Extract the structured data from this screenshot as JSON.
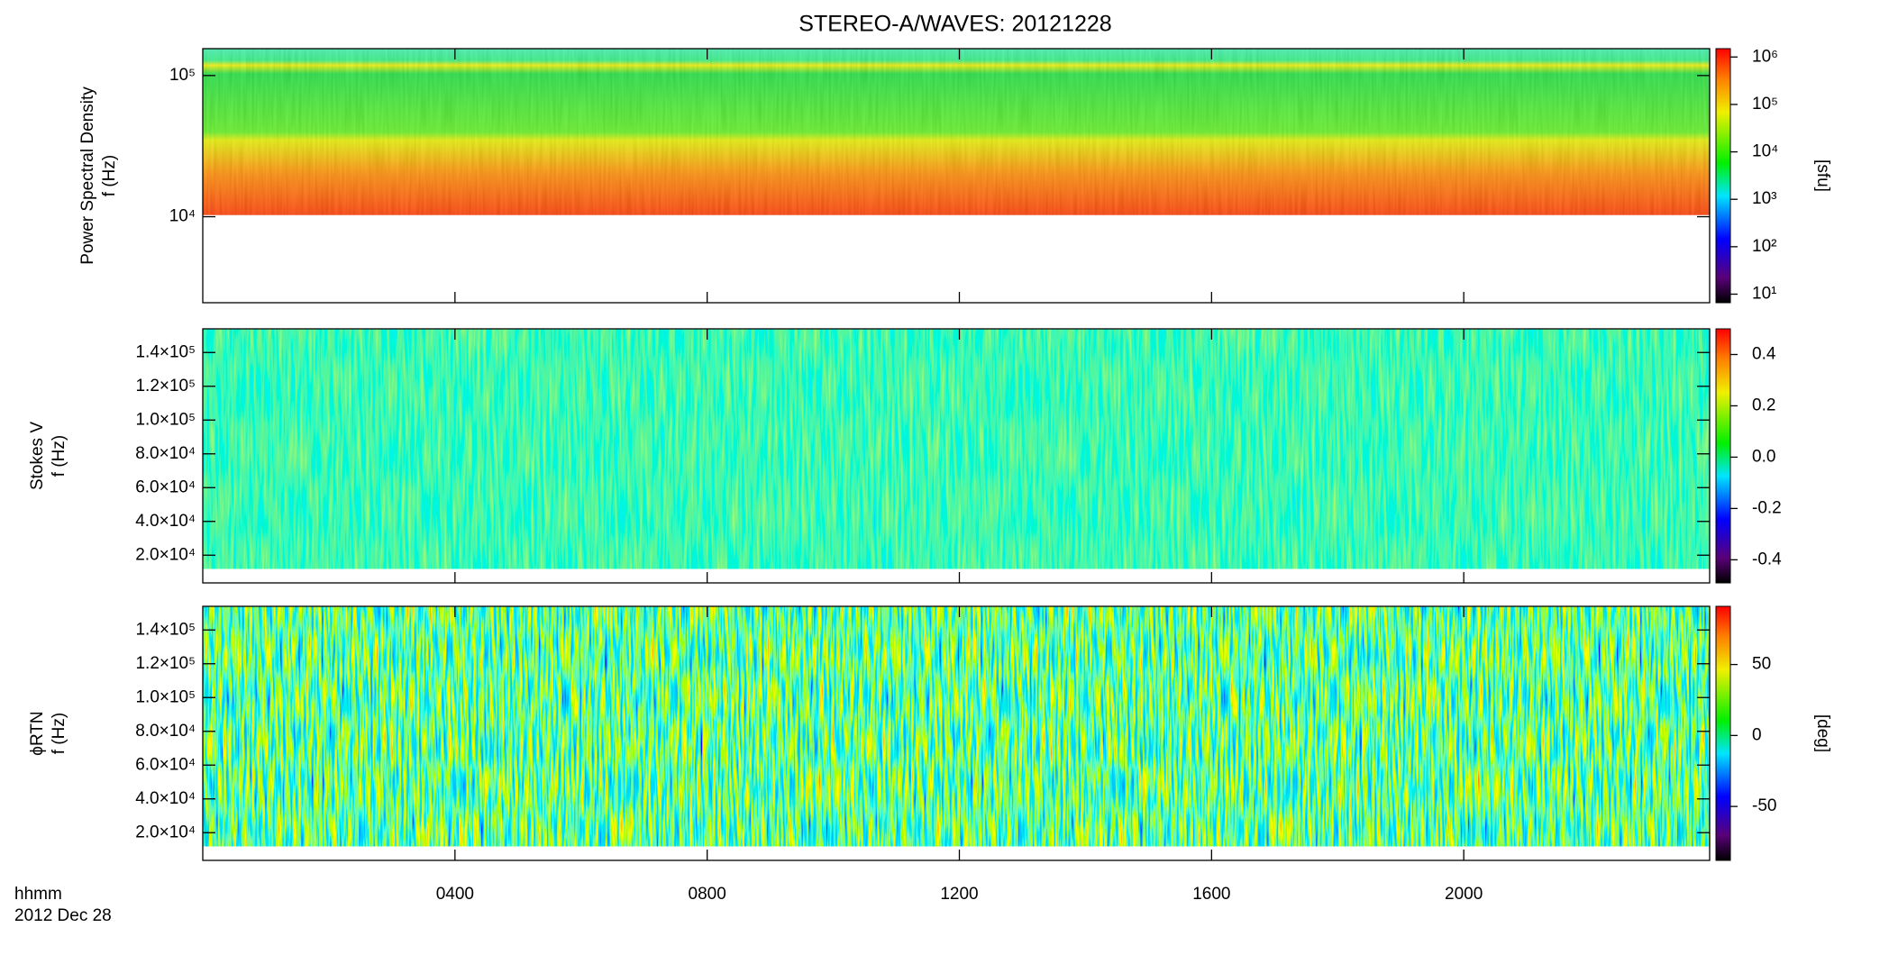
{
  "chart_data": [
    {
      "type": "heatmap",
      "title": "STEREO-A/WAVES: 20121228",
      "ylabel": [
        "Power Spectral Density",
        "f (Hz)"
      ],
      "ylog": true,
      "ylim": [
        2460,
        155000
      ],
      "yticks": [
        {
          "value": 10000,
          "label": "10⁴"
        },
        {
          "value": 100000,
          "label": "10⁵"
        }
      ],
      "colorbar": {
        "label": "[sfu]",
        "log": true,
        "lim": [
          6.6,
          1500000
        ],
        "ticks": [
          {
            "value": 10,
            "label": "10¹"
          },
          {
            "value": 100,
            "label": "10²"
          },
          {
            "value": 1000,
            "label": "10³"
          },
          {
            "value": 10000,
            "label": "10⁴"
          },
          {
            "value": 100000,
            "label": "10⁵"
          },
          {
            "value": 1000000,
            "label": "10⁶"
          }
        ]
      }
    },
    {
      "type": "heatmap",
      "ylabel": [
        "Stokes V",
        "f (Hz)"
      ],
      "ylog": false,
      "ylim": [
        3600,
        154000
      ],
      "yticks": [
        {
          "value": 20000,
          "label": "2.0×10⁴"
        },
        {
          "value": 40000,
          "label": "4.0×10⁴"
        },
        {
          "value": 60000,
          "label": "6.0×10⁴"
        },
        {
          "value": 80000,
          "label": "8.0×10⁴"
        },
        {
          "value": 100000,
          "label": "1.0×10⁵"
        },
        {
          "value": 120000,
          "label": "1.2×10⁵"
        },
        {
          "value": 140000,
          "label": "1.4×10⁵"
        }
      ],
      "colorbar": {
        "log": false,
        "lim": [
          -0.49,
          0.5
        ],
        "ticks": [
          -0.4,
          -0.2,
          {
            "value": 0,
            "label": "0.0"
          },
          0.2,
          0.4
        ]
      }
    },
    {
      "type": "heatmap",
      "ylabel": [
        "ϕRTN",
        "f (Hz)"
      ],
      "ylog": false,
      "ylim": [
        3600,
        154000
      ],
      "yticks": [
        {
          "value": 20000,
          "label": "2.0×10⁴"
        },
        {
          "value": 40000,
          "label": "4.0×10⁴"
        },
        {
          "value": 60000,
          "label": "6.0×10⁴"
        },
        {
          "value": 80000,
          "label": "8.0×10⁴"
        },
        {
          "value": 100000,
          "label": "1.0×10⁵"
        },
        {
          "value": 120000,
          "label": "1.2×10⁵"
        },
        {
          "value": 140000,
          "label": "1.4×10⁵"
        }
      ],
      "colorbar": {
        "label": "[deg]",
        "log": false,
        "lim": [
          -88,
          91
        ],
        "ticks": [
          -50,
          0,
          50
        ]
      },
      "xlabel": "hhmm",
      "date": "2012 Dec 28",
      "xlim": [
        0,
        23.9
      ],
      "xticks": [
        {
          "value": 4,
          "label": "0400"
        },
        {
          "value": 8,
          "label": "0800"
        },
        {
          "value": 12,
          "label": "1200"
        },
        {
          "value": 16,
          "label": "1600"
        },
        {
          "value": 20,
          "label": "2000"
        }
      ]
    }
  ]
}
